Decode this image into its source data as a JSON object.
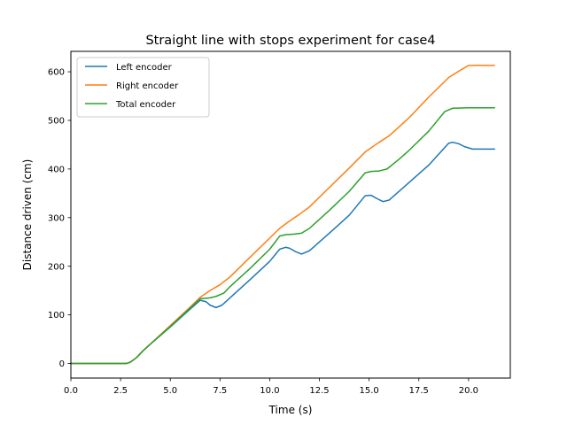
{
  "chart_data": {
    "type": "line",
    "title": "Straight line with stops experiment for case4",
    "xlabel": "Time (s)",
    "ylabel": "Distance driven (cm)",
    "xlim": [
      0,
      22.1
    ],
    "ylim": [
      -30,
      642
    ],
    "xticks": [
      0,
      2.5,
      5,
      7.5,
      10,
      12.5,
      15,
      17.5,
      20
    ],
    "xtick_labels": [
      "0.0",
      "2.5",
      "5.0",
      "7.5",
      "10.0",
      "12.5",
      "15.0",
      "17.5",
      "20.0"
    ],
    "yticks": [
      0,
      100,
      200,
      300,
      400,
      500,
      600
    ],
    "ytick_labels": [
      "0",
      "100",
      "200",
      "300",
      "400",
      "500",
      "600"
    ],
    "grid": false,
    "legend_position": "top-left",
    "series": [
      {
        "name": "Left encoder",
        "color": "#1f77b4",
        "points": [
          [
            0,
            0
          ],
          [
            2.8,
            0
          ],
          [
            3.0,
            3
          ],
          [
            3.3,
            12
          ],
          [
            3.6,
            25
          ],
          [
            4.0,
            40
          ],
          [
            5.0,
            75
          ],
          [
            6.0,
            112
          ],
          [
            6.5,
            130
          ],
          [
            6.8,
            127
          ],
          [
            7.0,
            120
          ],
          [
            7.3,
            115
          ],
          [
            7.6,
            120
          ],
          [
            8.0,
            135
          ],
          [
            9.0,
            172
          ],
          [
            10.0,
            210
          ],
          [
            10.5,
            235
          ],
          [
            10.8,
            239
          ],
          [
            11.0,
            237
          ],
          [
            11.3,
            230
          ],
          [
            11.6,
            225
          ],
          [
            12.0,
            232
          ],
          [
            13.0,
            268
          ],
          [
            14.0,
            305
          ],
          [
            14.8,
            345
          ],
          [
            15.1,
            346
          ],
          [
            15.4,
            339
          ],
          [
            15.7,
            333
          ],
          [
            16.0,
            336
          ],
          [
            17.0,
            372
          ],
          [
            18.0,
            408
          ],
          [
            19.0,
            453
          ],
          [
            19.2,
            455
          ],
          [
            19.5,
            452
          ],
          [
            19.8,
            446
          ],
          [
            20.2,
            441
          ],
          [
            21.3,
            441
          ]
        ]
      },
      {
        "name": "Right encoder",
        "color": "#ff7f0e",
        "points": [
          [
            0,
            0
          ],
          [
            2.8,
            0
          ],
          [
            3.0,
            3
          ],
          [
            3.3,
            12
          ],
          [
            3.6,
            25
          ],
          [
            4.0,
            40
          ],
          [
            5.0,
            78
          ],
          [
            6.0,
            116
          ],
          [
            6.5,
            136
          ],
          [
            7.0,
            150
          ],
          [
            7.5,
            162
          ],
          [
            8.0,
            178
          ],
          [
            9.0,
            218
          ],
          [
            10.0,
            258
          ],
          [
            10.5,
            278
          ],
          [
            11.0,
            293
          ],
          [
            11.5,
            307
          ],
          [
            12.0,
            322
          ],
          [
            13.0,
            362
          ],
          [
            14.0,
            402
          ],
          [
            14.8,
            435
          ],
          [
            15.5,
            455
          ],
          [
            16.0,
            468
          ],
          [
            17.0,
            505
          ],
          [
            18.0,
            548
          ],
          [
            19.0,
            588
          ],
          [
            19.5,
            601
          ],
          [
            20.0,
            613
          ],
          [
            21.3,
            613
          ]
        ]
      },
      {
        "name": "Total encoder",
        "color": "#2ca02c",
        "points": [
          [
            0,
            0
          ],
          [
            2.8,
            0
          ],
          [
            3.0,
            3
          ],
          [
            3.3,
            12
          ],
          [
            3.6,
            25
          ],
          [
            4.0,
            40
          ],
          [
            5.0,
            76
          ],
          [
            6.0,
            114
          ],
          [
            6.5,
            133
          ],
          [
            7.0,
            135
          ],
          [
            7.3,
            138
          ],
          [
            7.7,
            145
          ],
          [
            8.0,
            158
          ],
          [
            9.0,
            195
          ],
          [
            10.0,
            235
          ],
          [
            10.5,
            262
          ],
          [
            10.8,
            265
          ],
          [
            11.2,
            266
          ],
          [
            11.6,
            268
          ],
          [
            12.0,
            278
          ],
          [
            13.0,
            315
          ],
          [
            14.0,
            354
          ],
          [
            14.8,
            392
          ],
          [
            15.1,
            395
          ],
          [
            15.5,
            396
          ],
          [
            15.9,
            400
          ],
          [
            16.5,
            420
          ],
          [
            17.0,
            438
          ],
          [
            18.0,
            478
          ],
          [
            18.8,
            518
          ],
          [
            19.2,
            525
          ],
          [
            20.0,
            526
          ],
          [
            21.3,
            526
          ]
        ]
      }
    ]
  }
}
